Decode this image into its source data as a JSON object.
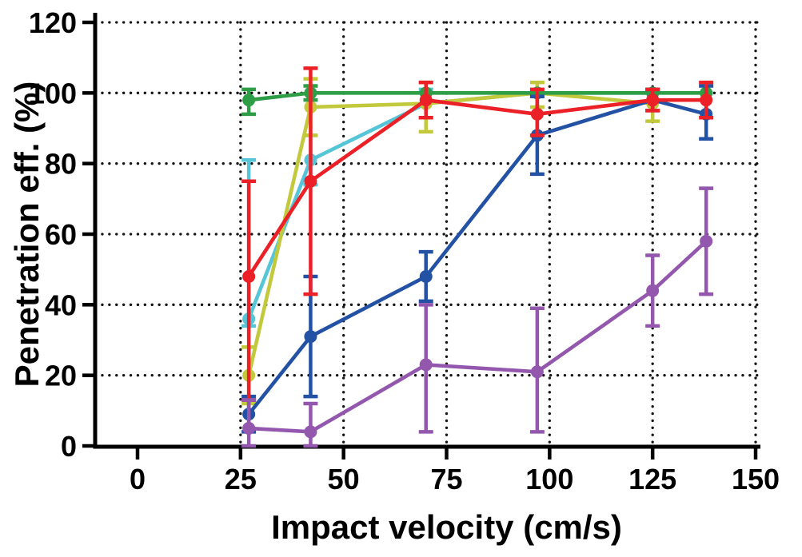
{
  "chart_data": {
    "type": "line",
    "title": "",
    "xlabel": "Impact velocity (cm/s)",
    "ylabel": "Penetration eff. (%)",
    "xlim": [
      0,
      150
    ],
    "ylim": [
      0,
      120
    ],
    "xticks": [
      0,
      25,
      50,
      75,
      100,
      125,
      150
    ],
    "yticks": [
      0,
      20,
      40,
      60,
      80,
      100,
      120
    ],
    "grid": "dotted",
    "axis_color": "#000000",
    "legend_position": "none",
    "x": [
      27,
      42,
      70,
      97,
      125,
      138
    ],
    "series": [
      {
        "name": "light-blue-series",
        "color": "#56C5D8",
        "values": [
          36,
          81,
          97,
          100,
          100,
          null
        ],
        "err_low": [
          34,
          74,
          93,
          null,
          null,
          null
        ],
        "err_high": [
          81,
          88,
          101,
          null,
          null,
          null
        ]
      },
      {
        "name": "yellow-green-series",
        "color": "#C3C93C",
        "values": [
          20,
          96,
          97,
          100,
          97,
          null
        ],
        "err_low": [
          12,
          88,
          89,
          96,
          92,
          null
        ],
        "err_high": [
          28,
          104,
          103,
          103,
          101,
          null
        ]
      },
      {
        "name": "green-series",
        "color": "#2D9E46",
        "values": [
          98,
          100,
          100,
          100,
          100,
          100
        ],
        "err_low": [
          94,
          98,
          null,
          null,
          null,
          null
        ],
        "err_high": [
          101,
          102,
          null,
          null,
          null,
          null
        ]
      },
      {
        "name": "dark-blue-series",
        "color": "#2352A5",
        "values": [
          9,
          31,
          48,
          88,
          98,
          94
        ],
        "err_low": [
          4,
          14,
          41,
          77,
          95,
          87
        ],
        "err_high": [
          14,
          48,
          55,
          99,
          101,
          102
        ]
      },
      {
        "name": "red-series",
        "color": "#EC2027",
        "values": [
          48,
          75,
          98,
          94,
          98,
          98
        ],
        "err_low": [
          13,
          43,
          93,
          88,
          95,
          93
        ],
        "err_high": [
          75,
          107,
          103,
          101,
          101,
          103
        ]
      },
      {
        "name": "purple-series",
        "color": "#9457AE",
        "values": [
          5,
          4,
          23,
          21,
          44,
          58
        ],
        "err_low": [
          0,
          0,
          4,
          4,
          34,
          43
        ],
        "err_high": [
          13,
          12,
          40,
          39,
          54,
          73
        ]
      }
    ]
  }
}
